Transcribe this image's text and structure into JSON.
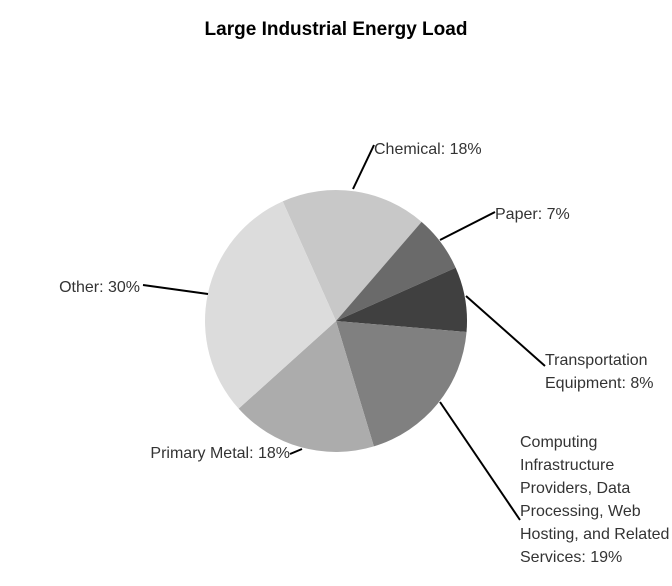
{
  "chart_data": {
    "type": "pie",
    "title": "Large Industrial Energy Load",
    "values": [
      18,
      7,
      8,
      19,
      18,
      30
    ],
    "value_labels": [
      "Chemical: 18%",
      "Paper: 7%",
      "Transportation Equipment: 8%",
      "Computing Infrastructure Providers, Data Processing, Web Hosting, and Related Services: 19%",
      "Primary Metal: 18%",
      "Other: 30%"
    ],
    "colors": [
      "#c8c8c8",
      "#6a6a6a",
      "#404040",
      "#808080",
      "#acacac",
      "#dcdcdc"
    ]
  }
}
